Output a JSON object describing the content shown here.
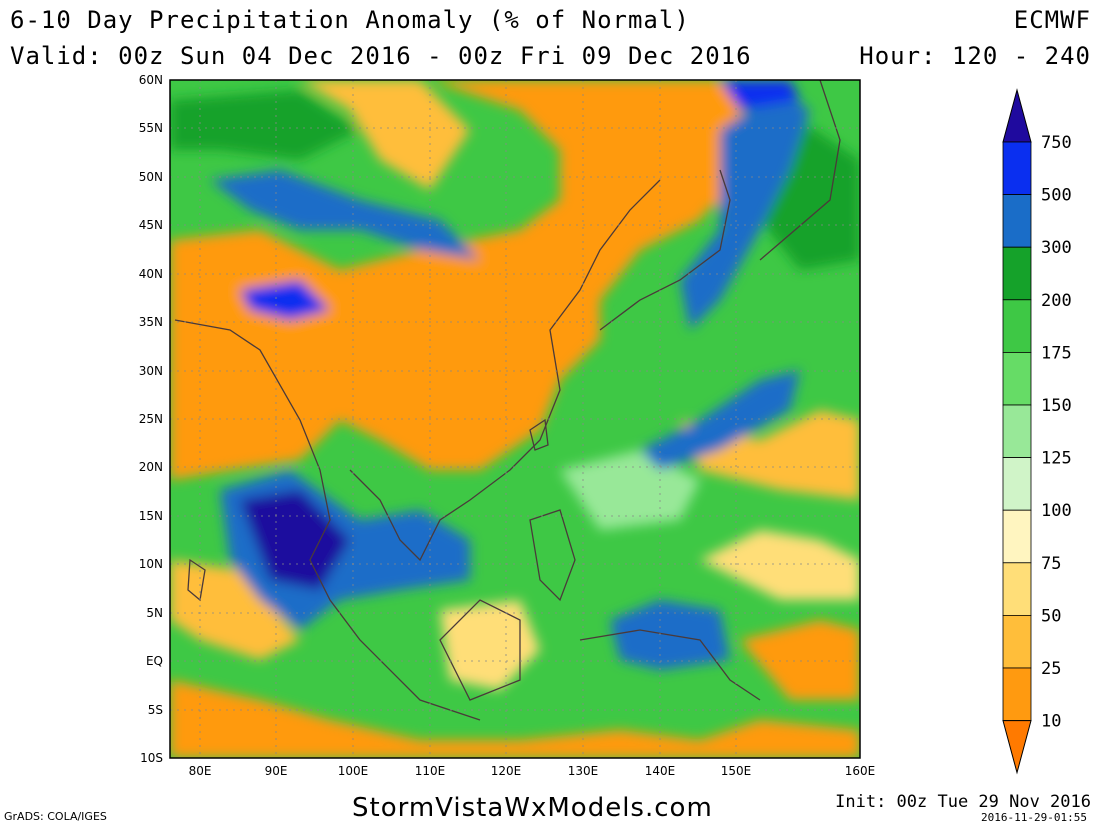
{
  "header": {
    "title": "6-10 Day Precipitation Anomaly (% of Normal)",
    "model": "ECMWF",
    "valid": "Valid: 00z Sun 04 Dec 2016 - 00z Fri 09 Dec 2016",
    "hours": "Hour: 120 - 240"
  },
  "axes": {
    "lat_labels": [
      "60N",
      "55N",
      "50N",
      "45N",
      "40N",
      "35N",
      "30N",
      "25N",
      "20N",
      "15N",
      "10N",
      "5N",
      "EQ",
      "5S",
      "10S"
    ],
    "lon_labels": [
      "80E",
      "90E",
      "100E",
      "110E",
      "120E",
      "130E",
      "140E",
      "150E",
      "160E"
    ]
  },
  "legend": {
    "levels": [
      "750",
      "500",
      "300",
      "200",
      "175",
      "150",
      "125",
      "100",
      "75",
      "50",
      "25",
      "10"
    ],
    "colors": [
      "#1f0a9e",
      "#0a2ff0",
      "#1a6dc8",
      "#15a22a",
      "#3ec845",
      "#66dc66",
      "#98e898",
      "#d0f4c8",
      "#fff5c0",
      "#ffde78",
      "#ffbe3a",
      "#ff9a10",
      "#ff7a00"
    ]
  },
  "footer": {
    "credit": "StormVistaWxModels.com",
    "software": "GrADS: COLA/IGES",
    "init": "Init: 00z Tue 29 Nov 2016",
    "timestamp": "2016-11-29-01:55"
  }
}
